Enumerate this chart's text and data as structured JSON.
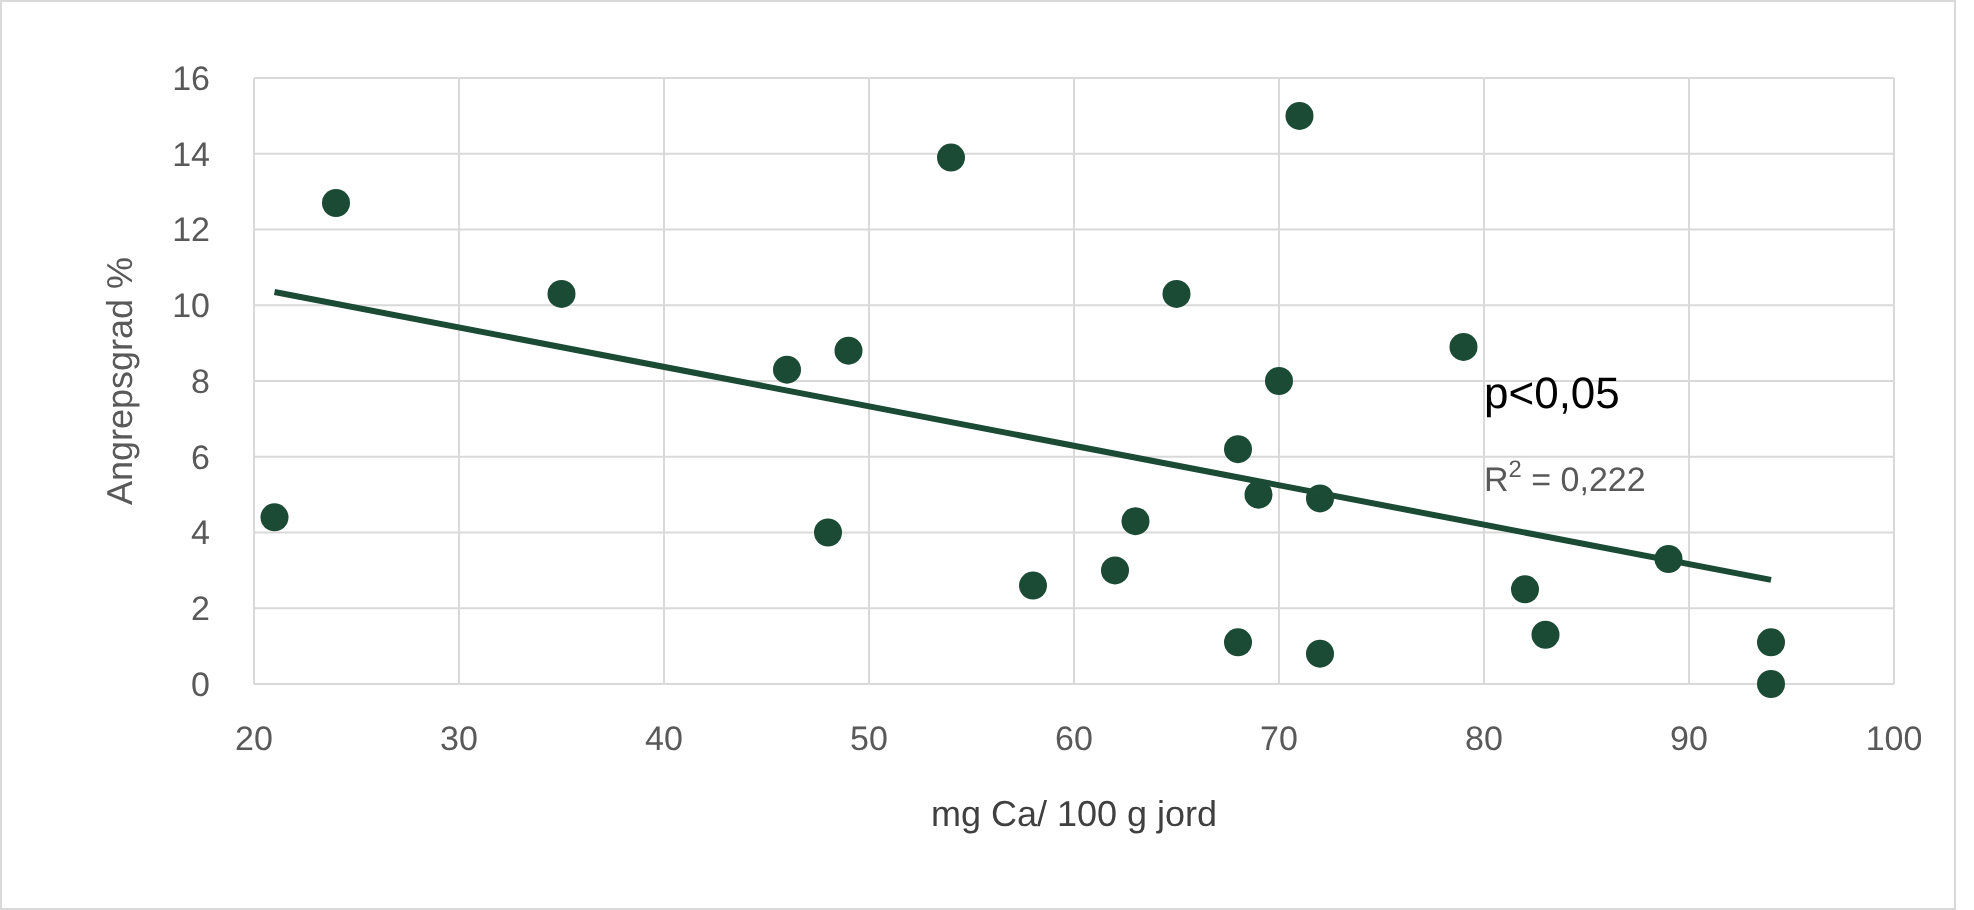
{
  "chart_data": {
    "type": "scatter",
    "xlabel": "mg Ca/ 100 g jord",
    "ylabel": "Angrepsgrad %",
    "xlim": [
      20,
      100
    ],
    "xticks": [
      20,
      30,
      40,
      50,
      60,
      70,
      80,
      90,
      100
    ],
    "ylim": [
      0,
      16
    ],
    "yticks": [
      0,
      2,
      4,
      6,
      8,
      10,
      12,
      14,
      16
    ],
    "grid": true,
    "annotations": [
      "p<0,05",
      "R$^{2}$ = 0,222"
    ],
    "series": [
      {
        "marker": "circle",
        "color": "#1b4a35",
        "x": [
          21,
          24,
          35,
          46,
          48,
          49,
          54,
          58,
          62,
          63,
          65,
          68,
          68,
          69,
          70,
          71,
          72,
          72,
          79,
          82,
          83,
          89,
          94,
          94
        ],
        "values": [
          4.4,
          12.7,
          10.3,
          8.3,
          4.0,
          8.8,
          13.9,
          2.6,
          3.0,
          4.3,
          10.3,
          6.2,
          1.1,
          5.0,
          8.0,
          15.0,
          4.9,
          0.8,
          8.9,
          2.5,
          1.3,
          3.3,
          1.1,
          0
        ]
      },
      {
        "type": "line",
        "marker": "none",
        "color": "#1b4a35",
        "x": [
          21,
          94
        ],
        "values": [
          10.35,
          2.75
        ]
      }
    ]
  }
}
